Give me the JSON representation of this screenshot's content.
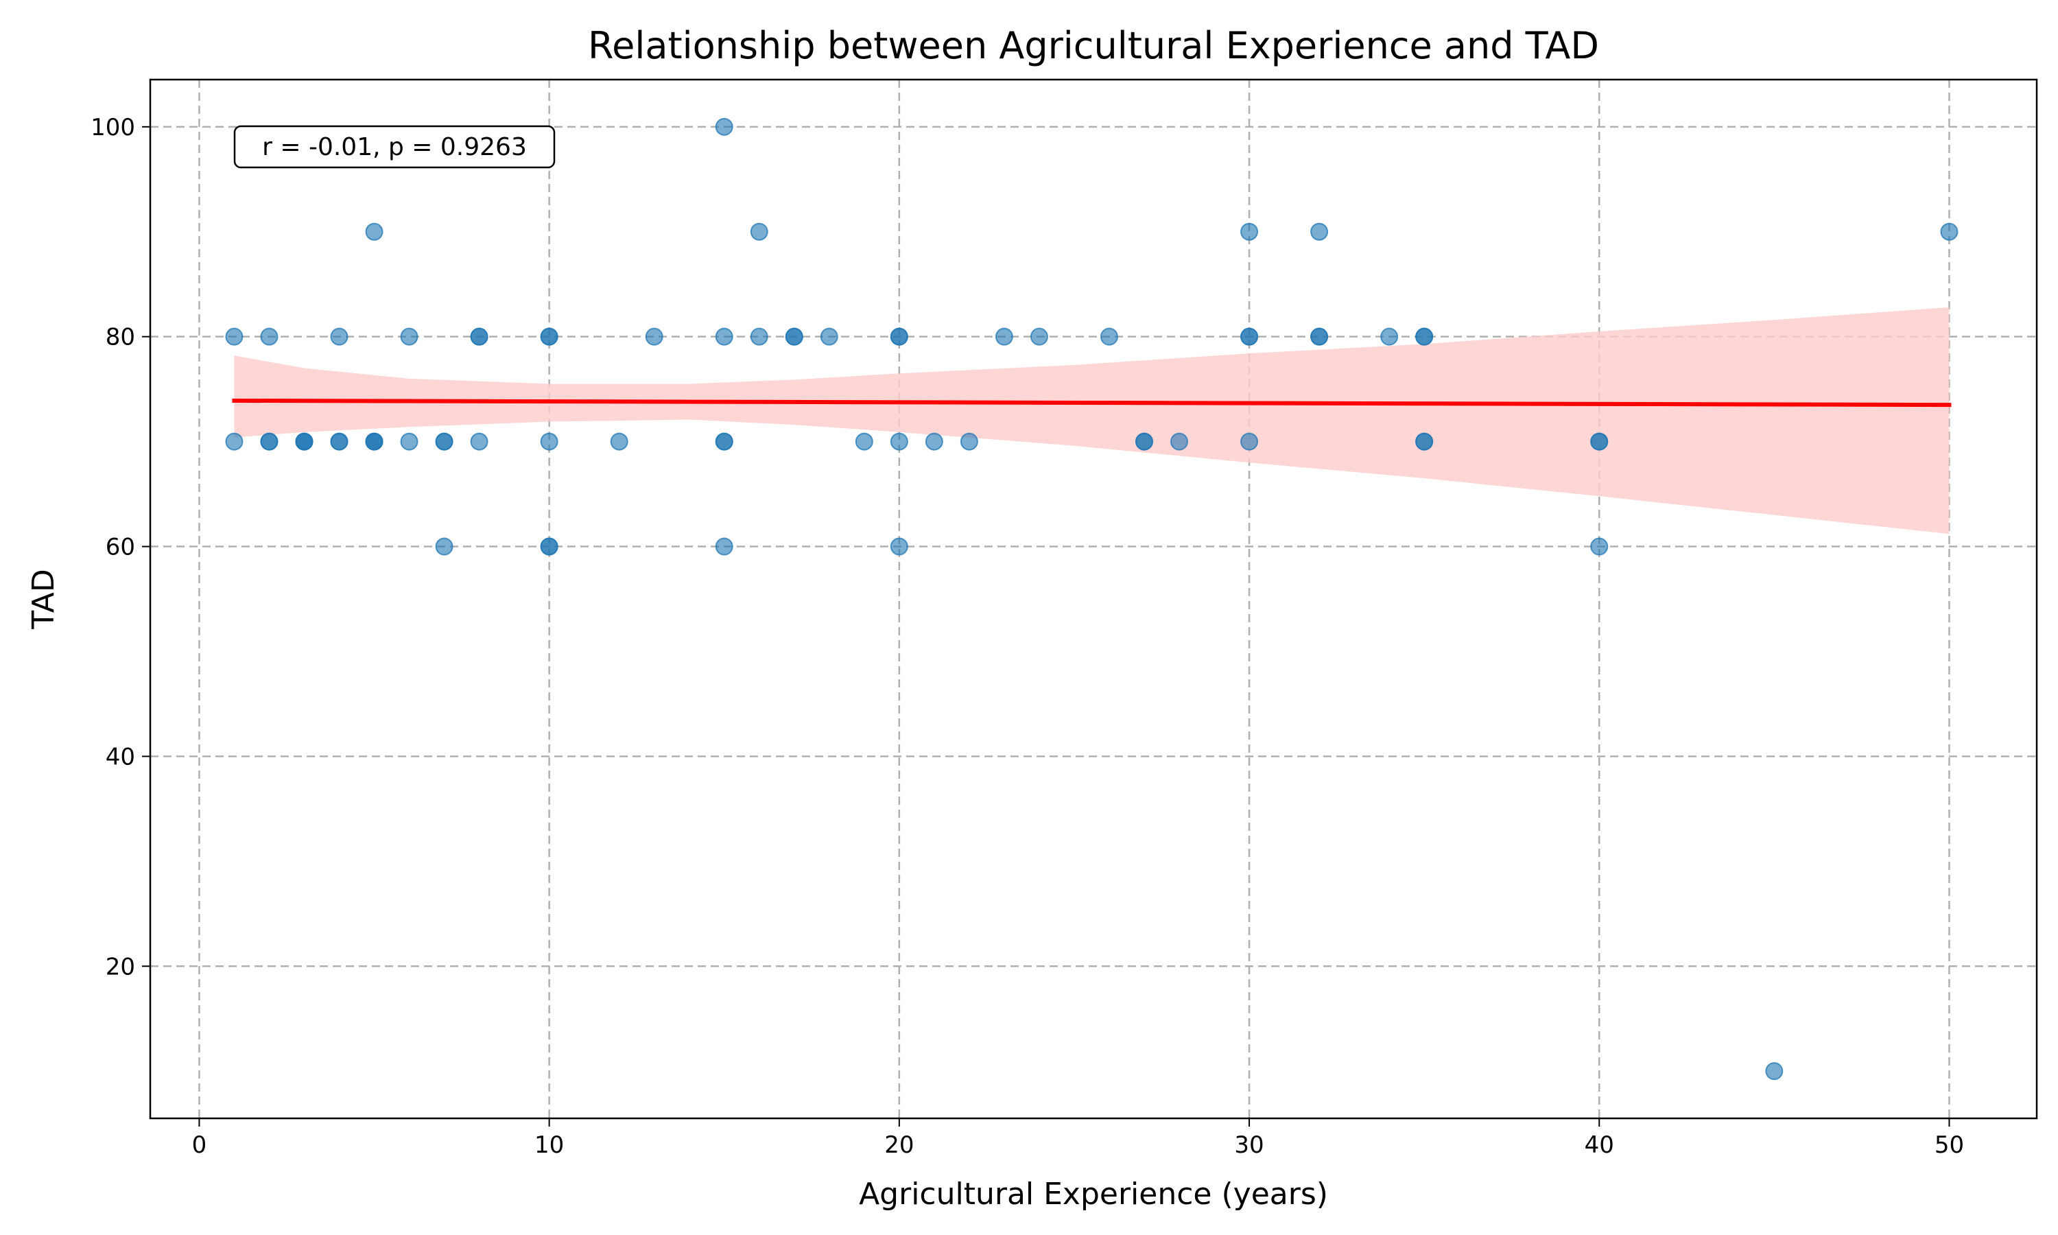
{
  "chart_data": {
    "type": "scatter",
    "title": "Relationship between Agricultural Experience and TAD",
    "xlabel": "Agricultural Experience (years)",
    "ylabel": "TAD",
    "xlim": [
      -1.4,
      52.5
    ],
    "ylim": [
      5.5,
      104.5
    ],
    "xticks": [
      0,
      10,
      20,
      30,
      40,
      50
    ],
    "yticks": [
      20,
      40,
      60,
      80,
      100
    ],
    "grid": true,
    "annotation": "r = -0.01, p = 0.9263",
    "colors": {
      "points": "#1f77b4",
      "regression_line": "#ff0000",
      "confidence_band": "#ffcccc",
      "grid": "#b0b0b0"
    },
    "points": [
      [
        1,
        80
      ],
      [
        1,
        70
      ],
      [
        2,
        80
      ],
      [
        2,
        70
      ],
      [
        2,
        70
      ],
      [
        3,
        70
      ],
      [
        3,
        70
      ],
      [
        3,
        70
      ],
      [
        4,
        80
      ],
      [
        4,
        70
      ],
      [
        4,
        70
      ],
      [
        5,
        90
      ],
      [
        5,
        70
      ],
      [
        5,
        70
      ],
      [
        5,
        70
      ],
      [
        6,
        80
      ],
      [
        6,
        70
      ],
      [
        7,
        70
      ],
      [
        7,
        70
      ],
      [
        7,
        60
      ],
      [
        8,
        80
      ],
      [
        8,
        80
      ],
      [
        8,
        70
      ],
      [
        10,
        80
      ],
      [
        10,
        80
      ],
      [
        10,
        70
      ],
      [
        10,
        60
      ],
      [
        10,
        60
      ],
      [
        12,
        70
      ],
      [
        13,
        80
      ],
      [
        15,
        100
      ],
      [
        15,
        80
      ],
      [
        15,
        70
      ],
      [
        15,
        70
      ],
      [
        15,
        60
      ],
      [
        16,
        90
      ],
      [
        16,
        80
      ],
      [
        17,
        80
      ],
      [
        17,
        80
      ],
      [
        18,
        80
      ],
      [
        19,
        70
      ],
      [
        20,
        80
      ],
      [
        20,
        80
      ],
      [
        20,
        70
      ],
      [
        20,
        60
      ],
      [
        21,
        70
      ],
      [
        22,
        70
      ],
      [
        23,
        80
      ],
      [
        24,
        80
      ],
      [
        26,
        80
      ],
      [
        27,
        70
      ],
      [
        27,
        70
      ],
      [
        28,
        70
      ],
      [
        30,
        90
      ],
      [
        30,
        80
      ],
      [
        30,
        80
      ],
      [
        30,
        70
      ],
      [
        32,
        90
      ],
      [
        32,
        80
      ],
      [
        32,
        80
      ],
      [
        34,
        80
      ],
      [
        35,
        80
      ],
      [
        35,
        80
      ],
      [
        35,
        70
      ],
      [
        35,
        70
      ],
      [
        40,
        70
      ],
      [
        40,
        70
      ],
      [
        40,
        60
      ],
      [
        45,
        10
      ],
      [
        50,
        90
      ]
    ],
    "regression": {
      "x": [
        1,
        50
      ],
      "y": [
        73.9,
        73.5
      ]
    },
    "confidence_band": {
      "x": [
        1,
        3,
        6,
        10,
        14,
        17,
        20,
        25,
        30,
        35,
        40,
        45,
        50
      ],
      "upper": [
        78.2,
        77.0,
        76.0,
        75.5,
        75.5,
        75.9,
        76.5,
        77.3,
        78.4,
        79.3,
        80.5,
        81.6,
        82.8
      ],
      "lower": [
        70.4,
        70.9,
        71.4,
        71.9,
        72.1,
        71.6,
        70.9,
        69.6,
        68.0,
        66.5,
        64.8,
        63.0,
        61.2
      ]
    }
  }
}
